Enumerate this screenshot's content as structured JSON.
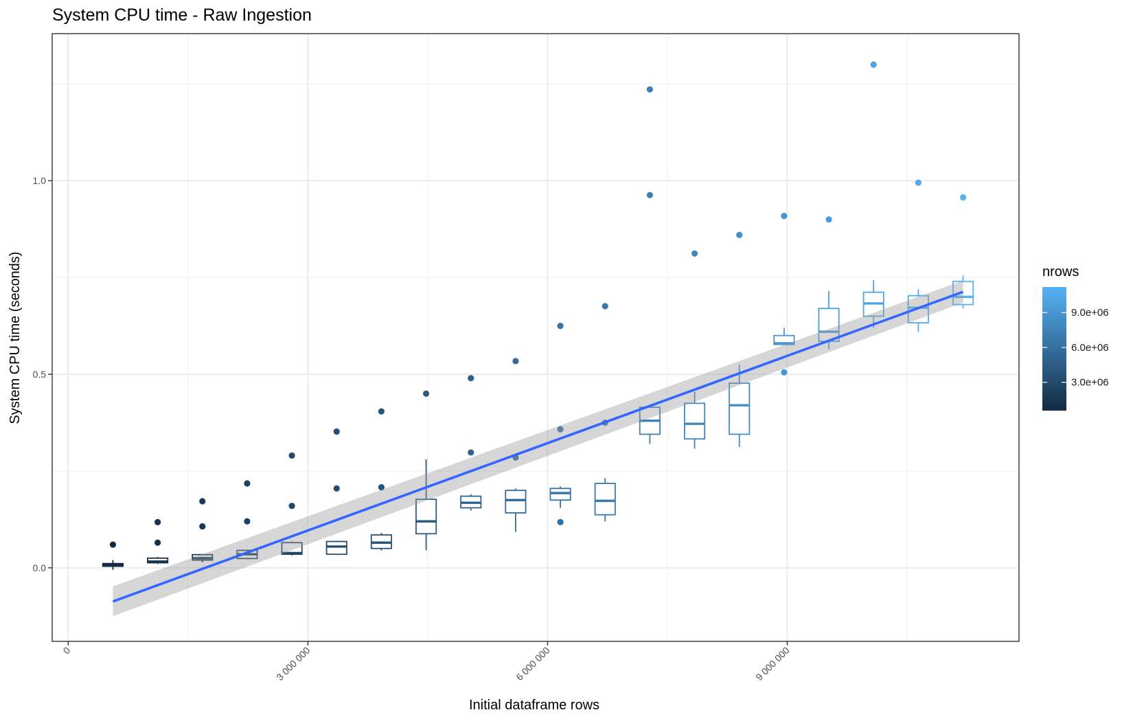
{
  "chart_data": {
    "type": "box",
    "title": "System CPU time - Raw Ingestion",
    "xlabel": "Initial dataframe rows",
    "ylabel": "System CPU time (seconds)",
    "xlim": [
      -200000,
      11900000
    ],
    "ylim": [
      -0.19,
      1.38
    ],
    "x_ticks": [
      0,
      3000000,
      6000000,
      9000000
    ],
    "x_tick_labels": [
      "0",
      "3 000 000",
      "6 000 000",
      "9 000 000"
    ],
    "y_ticks": [
      0.0,
      0.5,
      1.0
    ],
    "y_tick_labels": [
      "0.0",
      "0.5",
      "1.0"
    ],
    "grid": true,
    "legend": {
      "title": "nrows",
      "placement": "right",
      "type": "colorbar",
      "range": [
        560000,
        11200000
      ],
      "ticks": [
        3000000,
        6000000,
        9000000
      ],
      "tick_labels": [
        "3.0e+06",
        "6.0e+06",
        "9.0e+06"
      ],
      "low_color": "#132B43",
      "high_color": "#56B1F7"
    },
    "boxes": [
      {
        "x": 560000,
        "lower": -0.005,
        "q1": 0.004,
        "median": 0.008,
        "q3": 0.011,
        "upper": 0.02,
        "outliers": [
          0.06
        ]
      },
      {
        "x": 1120000,
        "lower": 0.01,
        "q1": 0.013,
        "median": 0.016,
        "q3": 0.025,
        "upper": 0.028,
        "outliers": [
          0.065,
          0.118
        ]
      },
      {
        "x": 1680000,
        "lower": 0.014,
        "q1": 0.02,
        "median": 0.025,
        "q3": 0.034,
        "upper": 0.035,
        "outliers": [
          0.107,
          0.172
        ]
      },
      {
        "x": 2240000,
        "lower": 0.022,
        "q1": 0.024,
        "median": 0.035,
        "q3": 0.045,
        "upper": 0.046,
        "outliers": [
          0.12,
          0.218
        ]
      },
      {
        "x": 2800000,
        "lower": 0.032,
        "q1": 0.035,
        "median": 0.038,
        "q3": 0.065,
        "upper": 0.068,
        "outliers": [
          0.16,
          0.29
        ]
      },
      {
        "x": 3360000,
        "lower": 0.033,
        "q1": 0.035,
        "median": 0.055,
        "q3": 0.068,
        "upper": 0.07,
        "outliers": [
          0.205,
          0.352
        ]
      },
      {
        "x": 3920000,
        "lower": 0.045,
        "q1": 0.05,
        "median": 0.065,
        "q3": 0.085,
        "upper": 0.09,
        "outliers": [
          0.208,
          0.404
        ]
      },
      {
        "x": 4480000,
        "lower": 0.045,
        "q1": 0.088,
        "median": 0.12,
        "q3": 0.177,
        "upper": 0.28,
        "outliers": [
          0.45
        ]
      },
      {
        "x": 5040000,
        "lower": 0.148,
        "q1": 0.155,
        "median": 0.168,
        "q3": 0.185,
        "upper": 0.19,
        "outliers": [
          0.298,
          0.49
        ]
      },
      {
        "x": 5600000,
        "lower": 0.093,
        "q1": 0.142,
        "median": 0.175,
        "q3": 0.2,
        "upper": 0.205,
        "outliers": [
          0.285,
          0.534
        ]
      },
      {
        "x": 6160000,
        "lower": 0.155,
        "q1": 0.175,
        "median": 0.193,
        "q3": 0.205,
        "upper": 0.21,
        "outliers": [
          0.118,
          0.358,
          0.625
        ]
      },
      {
        "x": 6720000,
        "lower": 0.12,
        "q1": 0.137,
        "median": 0.173,
        "q3": 0.218,
        "upper": 0.232,
        "outliers": [
          0.375,
          0.676
        ]
      },
      {
        "x": 7280000,
        "lower": 0.32,
        "q1": 0.345,
        "median": 0.38,
        "q3": 0.415,
        "upper": 0.42,
        "outliers": [
          0.963,
          1.236
        ]
      },
      {
        "x": 7840000,
        "lower": 0.308,
        "q1": 0.333,
        "median": 0.372,
        "q3": 0.425,
        "upper": 0.455,
        "outliers": [
          0.812
        ]
      },
      {
        "x": 8400000,
        "lower": 0.312,
        "q1": 0.345,
        "median": 0.42,
        "q3": 0.477,
        "upper": 0.525,
        "outliers": [
          0.86
        ]
      },
      {
        "x": 8960000,
        "lower": 0.575,
        "q1": 0.577,
        "median": 0.58,
        "q3": 0.6,
        "upper": 0.62,
        "outliers": [
          0.505,
          0.909
        ]
      },
      {
        "x": 9520000,
        "lower": 0.565,
        "q1": 0.585,
        "median": 0.61,
        "q3": 0.67,
        "upper": 0.715,
        "outliers": [
          0.9
        ]
      },
      {
        "x": 10080000,
        "lower": 0.62,
        "q1": 0.65,
        "median": 0.683,
        "q3": 0.712,
        "upper": 0.743,
        "outliers": [
          1.3
        ]
      },
      {
        "x": 10640000,
        "lower": 0.61,
        "q1": 0.633,
        "median": 0.672,
        "q3": 0.703,
        "upper": 0.72,
        "outliers": [
          0.995
        ]
      },
      {
        "x": 11200000,
        "lower": 0.67,
        "q1": 0.68,
        "median": 0.7,
        "q3": 0.74,
        "upper": 0.755,
        "outliers": [
          0.957
        ]
      }
    ],
    "smooth": {
      "method": "linear",
      "color": "#3366FF",
      "x": [
        560000,
        11200000
      ],
      "y": [
        -0.087,
        0.713
      ],
      "ci_lower": [
        -0.125,
        0.685
      ],
      "ci_upper": [
        -0.048,
        0.742
      ]
    }
  }
}
